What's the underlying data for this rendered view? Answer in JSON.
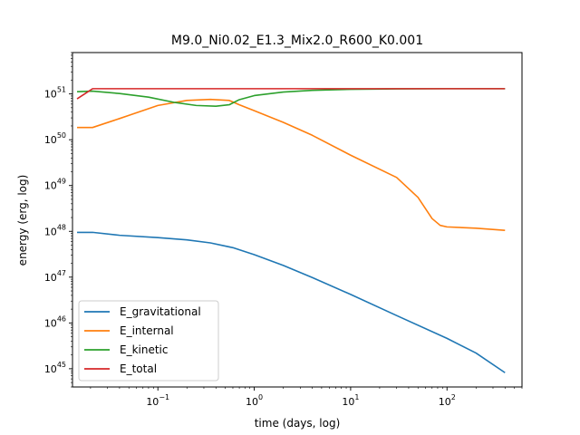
{
  "chart_data": {
    "type": "line",
    "title": "M9.0_Ni0.02_E1.3_Mix2.0_R600_K0.001",
    "xlabel": "time (days, log)",
    "ylabel": "energy (erg, log)",
    "xscale": "log",
    "yscale": "log",
    "xlim": [
      0.013,
      600
    ],
    "ylim": [
      4e+44,
      8e+51
    ],
    "x_ticks": [
      {
        "value": 0.1,
        "base": "10",
        "exp": "−1"
      },
      {
        "value": 1,
        "base": "10",
        "exp": "0"
      },
      {
        "value": 10,
        "base": "10",
        "exp": "1"
      },
      {
        "value": 100,
        "base": "10",
        "exp": "2"
      }
    ],
    "y_ticks": [
      {
        "value": 1e+45,
        "base": "10",
        "exp": "45"
      },
      {
        "value": 1e+46,
        "base": "10",
        "exp": "46"
      },
      {
        "value": 1e+47,
        "base": "10",
        "exp": "47"
      },
      {
        "value": 1e+48,
        "base": "10",
        "exp": "48"
      },
      {
        "value": 1e+49,
        "base": "10",
        "exp": "49"
      },
      {
        "value": 1e+50,
        "base": "10",
        "exp": "50"
      },
      {
        "value": 1e+51,
        "base": "10",
        "exp": "51"
      }
    ],
    "grid": false,
    "legend_position": "lower-left",
    "series": [
      {
        "name": "E_gravitational",
        "color": "#1f77b4",
        "points": [
          [
            0.0145,
            9.5e+47
          ],
          [
            0.021,
            9.5e+47
          ],
          [
            0.04,
            8.2e+47
          ],
          [
            0.1,
            7.3e+47
          ],
          [
            0.2,
            6.5e+47
          ],
          [
            0.35,
            5.6e+47
          ],
          [
            0.6,
            4.4e+47
          ],
          [
            1.0,
            3.1e+47
          ],
          [
            2.0,
            1.8e+47
          ],
          [
            4.0,
            9.8e+46
          ],
          [
            10,
            4.2e+46
          ],
          [
            30,
            1.45e+46
          ],
          [
            100,
            4.6e+45
          ],
          [
            200,
            2.2e+45
          ],
          [
            400,
            8.2e+44
          ]
        ]
      },
      {
        "name": "E_internal",
        "color": "#ff7f0e",
        "points": [
          [
            0.0145,
            1.85e+50
          ],
          [
            0.021,
            1.85e+50
          ],
          [
            0.04,
            2.9e+50
          ],
          [
            0.1,
            5.6e+50
          ],
          [
            0.2,
            7.2e+50
          ],
          [
            0.35,
            7.6e+50
          ],
          [
            0.55,
            7.2e+50
          ],
          [
            0.7,
            5.8e+50
          ],
          [
            1.0,
            4.3e+50
          ],
          [
            2.0,
            2.4e+50
          ],
          [
            4.0,
            1.25e+50
          ],
          [
            10,
            4.6e+49
          ],
          [
            30,
            1.5e+49
          ],
          [
            50,
            5.5e+48
          ],
          [
            70,
            1.9e+48
          ],
          [
            85,
            1.35e+48
          ],
          [
            100,
            1.25e+48
          ],
          [
            200,
            1.17e+48
          ],
          [
            400,
            1.05e+48
          ]
        ]
      },
      {
        "name": "E_kinetic",
        "color": "#2ca02c",
        "points": [
          [
            0.0145,
            1.12e+51
          ],
          [
            0.021,
            1.15e+51
          ],
          [
            0.04,
            1.02e+51
          ],
          [
            0.08,
            8.5e+50
          ],
          [
            0.15,
            6.5e+50
          ],
          [
            0.25,
            5.6e+50
          ],
          [
            0.4,
            5.4e+50
          ],
          [
            0.55,
            5.8e+50
          ],
          [
            0.7,
            7.5e+50
          ],
          [
            1.0,
            9.2e+50
          ],
          [
            2.0,
            1.1e+51
          ],
          [
            4.0,
            1.2e+51
          ],
          [
            10,
            1.26e+51
          ],
          [
            30,
            1.29e+51
          ],
          [
            100,
            1.3e+51
          ],
          [
            400,
            1.3e+51
          ]
        ]
      },
      {
        "name": "E_total",
        "color": "#d62728",
        "points": [
          [
            0.0145,
            7.8e+50
          ],
          [
            0.018,
            1.05e+51
          ],
          [
            0.021,
            1.3e+51
          ],
          [
            0.05,
            1.3e+51
          ],
          [
            1,
            1.3e+51
          ],
          [
            10,
            1.3e+51
          ],
          [
            100,
            1.3e+51
          ],
          [
            400,
            1.3e+51
          ]
        ]
      }
    ]
  }
}
